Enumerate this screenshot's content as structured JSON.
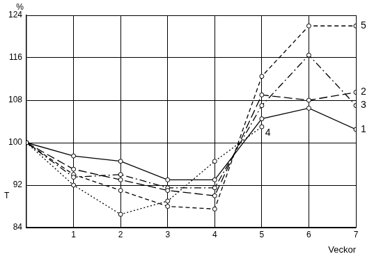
{
  "chart_data": {
    "type": "line",
    "x_label": "Veckor",
    "y_label": "%",
    "annotations": [
      "T"
    ],
    "x": [
      0,
      1,
      2,
      3,
      4,
      5,
      6,
      7
    ],
    "xlim": [
      0,
      7
    ],
    "xticks": [
      1,
      2,
      3,
      4,
      5,
      6,
      7
    ],
    "ylim": [
      84,
      124
    ],
    "yticks": [
      84,
      92,
      100,
      108,
      116,
      124
    ],
    "grid": true,
    "series": [
      {
        "name": "1",
        "color": "#000000",
        "line_style": "solid",
        "marker": "circle",
        "values": [
          100,
          97.5,
          96.5,
          93,
          93,
          104.5,
          106.5,
          102.5
        ]
      },
      {
        "name": "2",
        "color": "#000000",
        "line_style": "longdash",
        "marker": "circle",
        "values": [
          100,
          95,
          93,
          91,
          90,
          109,
          108,
          109.5
        ]
      },
      {
        "name": "3",
        "color": "#000000",
        "line_style": "dashdot",
        "marker": "circle",
        "values": [
          100,
          93.5,
          94,
          91.5,
          91.5,
          107,
          116.5,
          107
        ]
      },
      {
        "name": "4",
        "color": "#000000",
        "line_style": "dotted",
        "marker": "circle",
        "values": [
          100,
          92,
          86.5,
          89,
          96.5,
          103,
          null,
          null
        ]
      },
      {
        "name": "5",
        "color": "#000000",
        "line_style": "dashed",
        "marker": "circle",
        "values": [
          100,
          94,
          91,
          88,
          87.5,
          112.5,
          122,
          122
        ]
      }
    ]
  }
}
